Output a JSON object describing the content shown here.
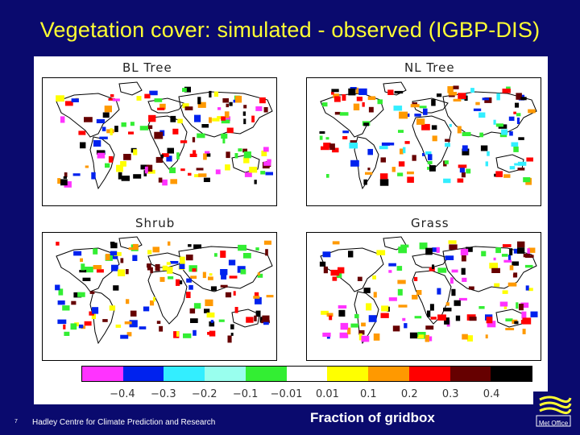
{
  "slide": {
    "title": "Vegetation cover: simulated - observed (IGBP-DIS)",
    "page_number": "7",
    "footer": "Hadley Centre for Climate Prediction and Research",
    "caption": "Fraction of gridbox",
    "logo_text": "Met Office"
  },
  "panels": [
    {
      "title": "BL Tree"
    },
    {
      "title": "NL Tree"
    },
    {
      "title": "Shrub"
    },
    {
      "title": "Grass"
    }
  ],
  "colorbar": {
    "colors": [
      "#ff33ff",
      "#0022ee",
      "#33eeff",
      "#99ffee",
      "#33ee33",
      "#ffffff",
      "#ffff00",
      "#ff9900",
      "#ff0000",
      "#660000",
      "#000000"
    ],
    "labels": [
      "-0.4",
      "-0.3",
      "-0.2",
      "-0.1",
      "-0.01",
      "0.01",
      "0.1",
      "0.2",
      "0.3",
      "0.4"
    ]
  }
}
